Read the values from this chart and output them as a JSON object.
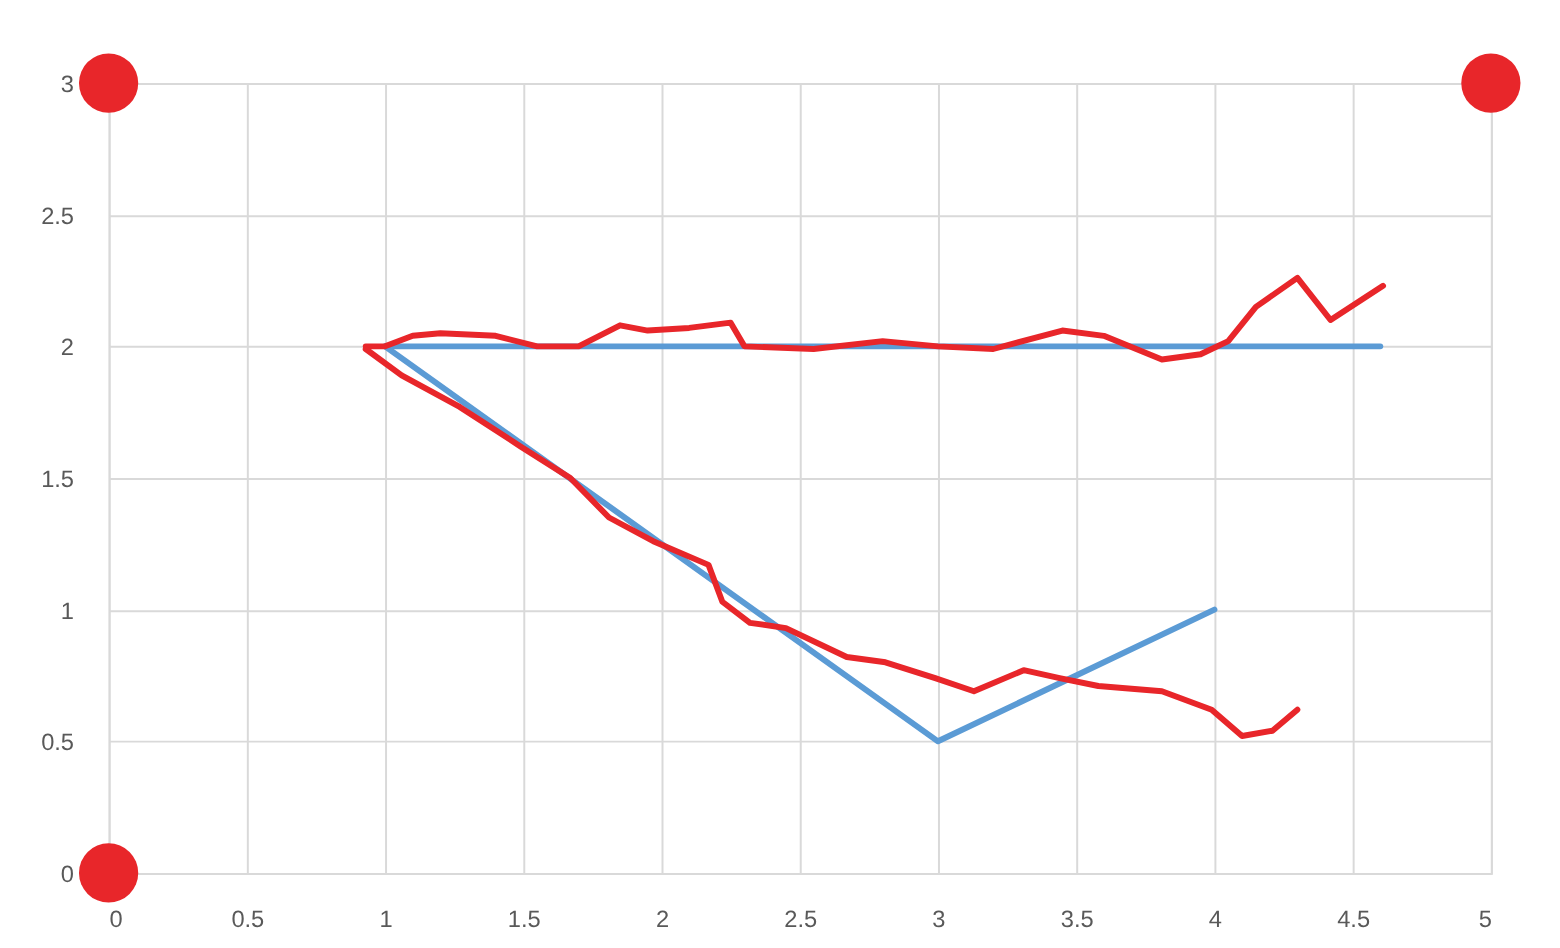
{
  "chart_data": {
    "type": "line",
    "xlim": [
      0,
      5
    ],
    "ylim": [
      0,
      3
    ],
    "xticks": [
      0,
      0.5,
      1,
      1.5,
      2,
      2.5,
      3,
      3.5,
      4,
      4.5,
      5
    ],
    "yticks": [
      0,
      0.5,
      1,
      1.5,
      2,
      2.5,
      3
    ],
    "grid": true,
    "line_style": "solid",
    "series": [
      {
        "color": "#5b9bd5",
        "x": [
          1,
          4.6
        ],
        "values": [
          2,
          2
        ]
      },
      {
        "color": "#5b9bd5",
        "x": [
          1,
          3,
          4
        ],
        "values": [
          2,
          0.5,
          1
        ]
      },
      {
        "color": "#e8262a",
        "x": [
          0.93,
          1.0,
          1.1,
          1.2,
          1.4,
          1.55,
          1.7,
          1.85,
          1.95,
          2.1,
          2.25,
          2.3,
          2.55,
          2.8,
          3.0,
          3.2,
          3.45,
          3.6,
          3.81,
          3.95,
          4.05,
          4.15,
          4.3,
          4.42,
          4.61
        ],
        "values": [
          2.0,
          2.0,
          2.04,
          2.05,
          2.04,
          2.0,
          2.0,
          2.08,
          2.06,
          2.07,
          2.09,
          2.0,
          1.99,
          2.02,
          2.0,
          1.99,
          2.06,
          2.04,
          1.95,
          1.97,
          2.02,
          2.15,
          2.26,
          2.1,
          2.23
        ]
      },
      {
        "color": "#e8262a",
        "x": [
          0.93,
          1.06,
          1.27,
          1.49,
          1.67,
          1.81,
          1.97,
          2.17,
          2.22,
          2.32,
          2.45,
          2.67,
          2.81,
          2.99,
          3.13,
          3.31,
          3.44,
          3.58,
          3.81,
          3.99,
          4.1,
          4.21,
          4.3
        ],
        "values": [
          1.99,
          1.89,
          1.77,
          1.62,
          1.5,
          1.35,
          1.26,
          1.17,
          1.03,
          0.95,
          0.93,
          0.82,
          0.8,
          0.74,
          0.69,
          0.77,
          0.74,
          0.71,
          0.69,
          0.62,
          0.52,
          0.54,
          0.62
        ]
      },
      {
        "type": "scatter",
        "color": "#e8262a",
        "x": [
          0,
          5,
          0
        ],
        "values": [
          3,
          3,
          0
        ],
        "marker": "circle"
      }
    ]
  }
}
